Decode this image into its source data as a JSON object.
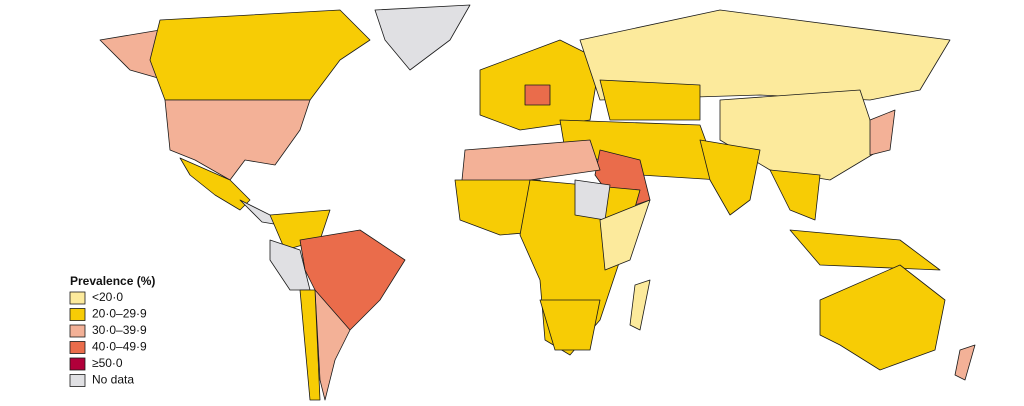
{
  "legend": {
    "title": "Prevalence (%)",
    "items": [
      {
        "label": "<20·0",
        "color": "#fcea9c"
      },
      {
        "label": "20·0–29·9",
        "color": "#f7cc05"
      },
      {
        "label": "30·0–39·9",
        "color": "#f3b197"
      },
      {
        "label": "40·0–49·9",
        "color": "#ea6c4b"
      },
      {
        "label": "≥50·0",
        "color": "#b1003a"
      },
      {
        "label": "No data",
        "color": "#e0e0e3"
      }
    ]
  }
}
